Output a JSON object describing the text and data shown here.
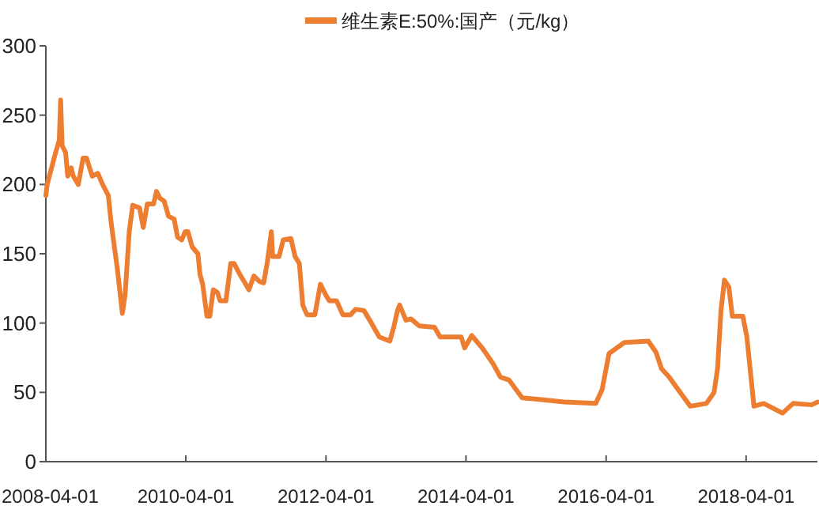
{
  "chart_data": {
    "type": "line",
    "legend": "top",
    "grid": false,
    "line_style": "solid",
    "xlim": [
      "2008-04-01",
      "2019-04-08"
    ],
    "xticks": [
      "2008-04-01",
      "2010-04-01",
      "2012-04-01",
      "2014-04-01",
      "2016-04-01",
      "2018-04-01"
    ],
    "ylim": [
      0,
      300
    ],
    "yticks": [
      0,
      50,
      100,
      150,
      200,
      250,
      300
    ],
    "series": [
      {
        "name": "维生素E:50%:国产（元/kg）",
        "color": "#ed7d31",
        "x": [
          "2008-04-01",
          "2008-04-08",
          "2008-05-22",
          "2008-06-10",
          "2008-06-17",
          "2008-06-25",
          "2008-07-13",
          "2008-07-24",
          "2008-08-11",
          "2008-08-22",
          "2008-09-17",
          "2008-10-12",
          "2008-10-30",
          "2008-11-29",
          "2008-12-28",
          "2009-01-22",
          "2009-02-21",
          "2009-03-07",
          "2009-04-09",
          "2009-05-05",
          "2009-05-19",
          "2009-06-10",
          "2009-06-28",
          "2009-08-03",
          "2009-08-22",
          "2009-09-12",
          "2009-10-15",
          "2009-10-30",
          "2009-11-17",
          "2009-12-09",
          "2010-01-01",
          "2010-01-30",
          "2010-02-17",
          "2010-03-11",
          "2010-03-29",
          "2010-04-12",
          "2010-05-04",
          "2010-06-03",
          "2010-06-14",
          "2010-06-28",
          "2010-07-20",
          "2010-08-04",
          "2010-08-22",
          "2010-09-13",
          "2010-09-27",
          "2010-10-27",
          "2010-11-21",
          "2010-12-09",
          "2011-01-08",
          "2011-02-03",
          "2011-02-24",
          "2011-03-22",
          "2011-04-20",
          "2011-05-12",
          "2011-05-30",
          "2011-06-21",
          "2011-06-28",
          "2011-07-31",
          "2011-08-22",
          "2011-10-01",
          "2011-10-23",
          "2011-11-14",
          "2011-12-02",
          "2011-12-24",
          "2012-02-03",
          "2012-03-03",
          "2012-04-01",
          "2012-04-19",
          "2012-05-26",
          "2012-06-28",
          "2012-08-07",
          "2012-09-02",
          "2012-10-16",
          "2012-11-24",
          "2013-01-04",
          "2013-02-28",
          "2013-03-22",
          "2013-04-09",
          "2013-04-20",
          "2013-05-23",
          "2013-06-18",
          "2013-07-31",
          "2013-10-19",
          "2013-11-17",
          "2014-03-07",
          "2014-03-25",
          "2014-05-01",
          "2014-06-25",
          "2014-08-19",
          "2014-09-28",
          "2014-11-11",
          "2015-01-19",
          "2015-04-09",
          "2015-08-26",
          "2016-02-07",
          "2016-03-11",
          "2016-04-16",
          "2016-05-26",
          "2016-07-05",
          "2016-11-07",
          "2016-12-17",
          "2017-01-15",
          "2017-02-24",
          "2017-04-06",
          "2017-06-14",
          "2017-09-06",
          "2017-10-16",
          "2017-11-03",
          "2017-11-21",
          "2017-12-09",
          "2018-01-01",
          "2018-01-19",
          "2018-03-15",
          "2018-04-05",
          "2018-05-12",
          "2018-07-02",
          "2018-10-08",
          "2018-12-02",
          "2019-03-08",
          "2019-04-08"
        ],
        "values": [
          192,
          200,
          223,
          232,
          261,
          228,
          223,
          206,
          212,
          206,
          200,
          219,
          219,
          206,
          208,
          200,
          192,
          173,
          139,
          107,
          120,
          166,
          185,
          183,
          169,
          186,
          186,
          195,
          190,
          188,
          177,
          175,
          162,
          160,
          166,
          166,
          155,
          150,
          135,
          128,
          105,
          105,
          124,
          122,
          116,
          116,
          143,
          143,
          135,
          129,
          124,
          134,
          130,
          129,
          143,
          166,
          148,
          148,
          160,
          161,
          148,
          143,
          113,
          106,
          106,
          128,
          120,
          116,
          116,
          106,
          106,
          110,
          109,
          100,
          90,
          87,
          98,
          109,
          113,
          102,
          103,
          98,
          97,
          90,
          90,
          82,
          91,
          82,
          71,
          61,
          59,
          46,
          45,
          43,
          42,
          52,
          78,
          82,
          86,
          87,
          79,
          67,
          61,
          53,
          40,
          42,
          50,
          67,
          109,
          131,
          126,
          105,
          105,
          90,
          40,
          42,
          35,
          42,
          41,
          43
        ]
      }
    ]
  }
}
